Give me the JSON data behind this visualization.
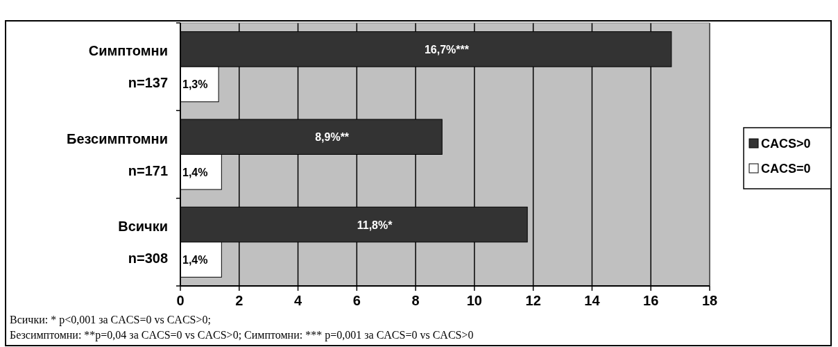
{
  "chart_data": {
    "type": "bar",
    "orientation": "horizontal",
    "categories": [
      "Симптомни\nn=137",
      "Безсимптомни\nn=171",
      "Всички\nn=308"
    ],
    "series": [
      {
        "name": "CACS>0",
        "color": "#333333",
        "values": [
          16.7,
          8.9,
          11.8
        ],
        "value_labels": [
          "16,7%***",
          "8,9%**",
          "11,8%*"
        ]
      },
      {
        "name": "CACS=0",
        "color": "#ffffff",
        "values": [
          1.3,
          1.4,
          1.4
        ],
        "value_labels": [
          "1,3%",
          "1,4%",
          "1,4%"
        ]
      }
    ],
    "xlim": [
      0,
      18
    ],
    "xticks": [
      0,
      2,
      4,
      6,
      8,
      10,
      12,
      14,
      16,
      18
    ],
    "grid": "x",
    "legend": "right",
    "annotations": [
      "Всички: * p<0,001 за CACS=0 vs CACS>0;",
      "Безсимптомни: **p=0,04 за CACS=0 vs CACS>0; Симптомни: *** p=0,001 за CACS=0 vs CACS>0"
    ]
  }
}
